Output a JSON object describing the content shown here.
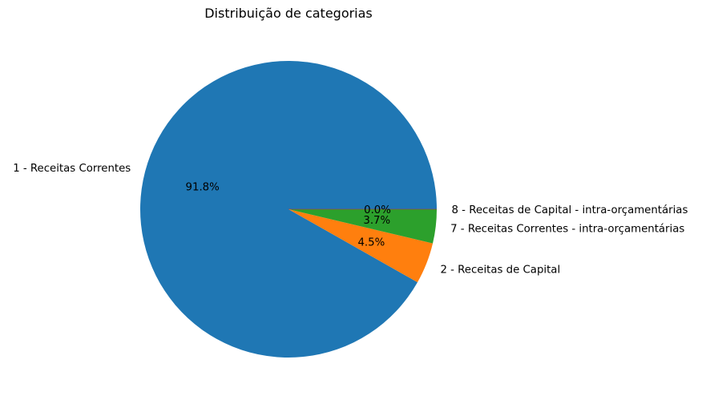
{
  "chart_data": {
    "type": "pie",
    "title": "Distribuição de categorias",
    "start_angle_deg": 0,
    "direction": "counterclockwise",
    "slices": [
      {
        "label": "1 - Receitas Correntes",
        "value": 91.8,
        "pct_label": "91.8%",
        "color": "#1f77b4"
      },
      {
        "label": "2 - Receitas de Capital",
        "value": 4.5,
        "pct_label": "4.5%",
        "color": "#ff7f0e"
      },
      {
        "label": "7 - Receitas Correntes - intra-orçamentárias",
        "value": 3.7,
        "pct_label": "3.7%",
        "color": "#2ca02c"
      },
      {
        "label": "8 - Receitas de Capital - intra-orçamentárias",
        "value": 0.0,
        "pct_label": "0.0%",
        "color": "#d62728"
      }
    ]
  }
}
